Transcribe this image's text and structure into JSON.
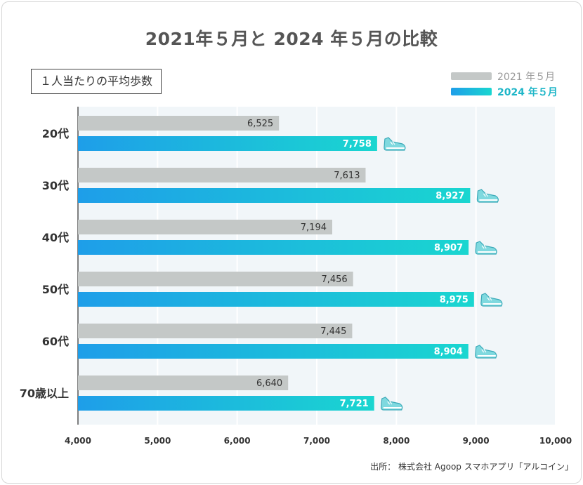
{
  "chart_data": {
    "type": "bar",
    "orientation": "horizontal",
    "title": "2021年５月と 2024 年５月の比較",
    "unit_label": "１人当たりの平均歩数",
    "categories": [
      "20代",
      "30代",
      "40代",
      "50代",
      "60代",
      "70歳以上"
    ],
    "series": [
      {
        "name": "2021 年５月",
        "values": [
          6525,
          7613,
          7194,
          7456,
          7445,
          6640
        ],
        "labels": [
          "6,525",
          "7,613",
          "7,194",
          "7,456",
          "7,445",
          "6,640"
        ],
        "color": "#c4c8c7"
      },
      {
        "name": "2024 年５月",
        "values": [
          7758,
          8927,
          8907,
          8975,
          8904,
          7721
        ],
        "labels": [
          "7,758",
          "8,927",
          "8,907",
          "8,975",
          "8,904",
          "7,721"
        ],
        "color_start": "#1e9ee9",
        "color_end": "#1ad6d0",
        "legend_color": "#1fb6c8"
      }
    ],
    "xlim": [
      4000,
      10000
    ],
    "xticks": [
      4000,
      5000,
      6000,
      7000,
      8000,
      9000,
      10000
    ],
    "xtick_labels": [
      "4,000",
      "5,000",
      "6,000",
      "7,000",
      "8,000",
      "9,000",
      "10,000"
    ],
    "legend_position": "top-right",
    "grid": true,
    "marker_icon": "sneaker-icon",
    "source": "出所： 株式会社 Agoop スマホアプリ「アルコイン」"
  }
}
